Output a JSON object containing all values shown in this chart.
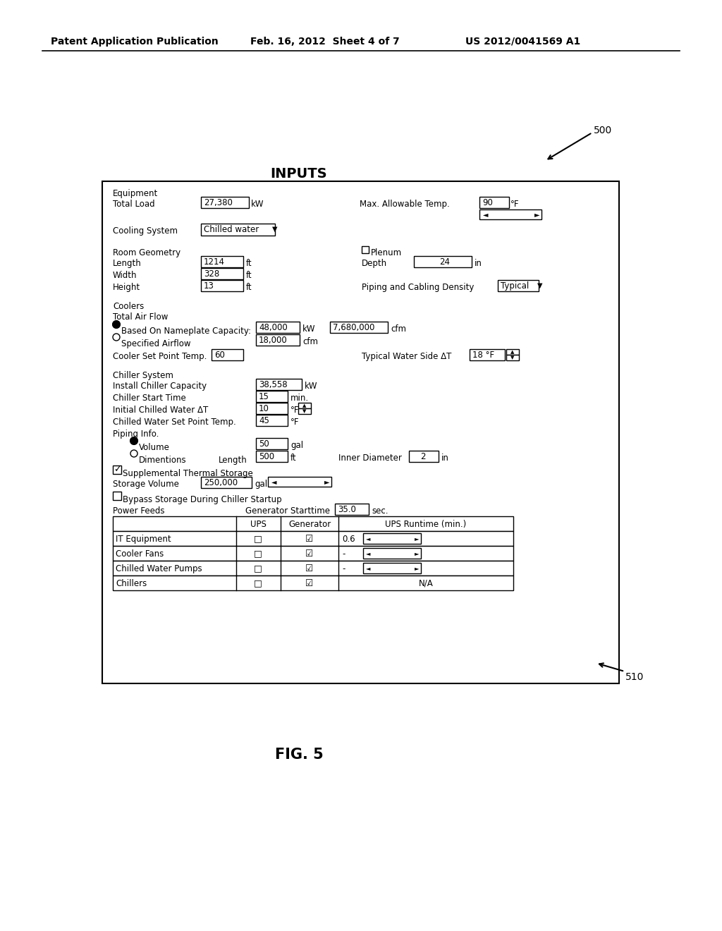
{
  "bg_color": "#ffffff",
  "header_left": "Patent Application Publication",
  "header_mid": "Feb. 16, 2012  Sheet 4 of 7",
  "header_right": "US 2012/0041569 A1",
  "label_500": "500",
  "label_510": "510",
  "title_inputs": "INPUTS",
  "fig_label": "FIG. 5"
}
